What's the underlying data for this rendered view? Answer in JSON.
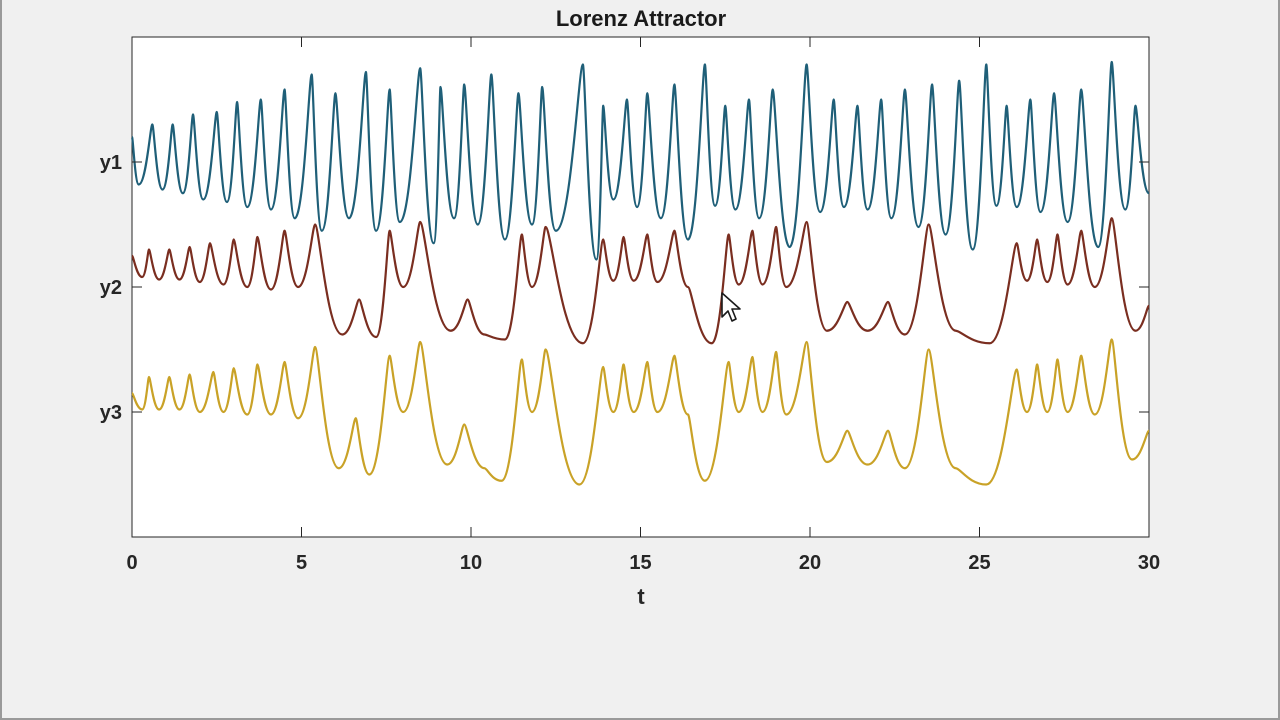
{
  "chart_data": {
    "type": "line",
    "title": "Lorenz Attractor",
    "xlabel": "t",
    "ylabel": "",
    "xlim": [
      0,
      30
    ],
    "x_ticks": [
      "0",
      "5",
      "10",
      "15",
      "20",
      "25",
      "30"
    ],
    "y_ticks": [
      "y1",
      "y2",
      "y3"
    ],
    "grid": false,
    "legend": "none",
    "series": [
      {
        "name": "y1",
        "color": "#1f5f78",
        "offset": 3,
        "peaks": [
          [
            0.0,
            0.2
          ],
          [
            0.6,
            0.3
          ],
          [
            1.2,
            0.3
          ],
          [
            1.8,
            0.38
          ],
          [
            2.5,
            0.4
          ],
          [
            3.1,
            0.48
          ],
          [
            3.8,
            0.5
          ],
          [
            4.5,
            0.58
          ],
          [
            5.3,
            0.7
          ],
          [
            6.0,
            0.55
          ],
          [
            6.9,
            0.72
          ],
          [
            7.6,
            0.58
          ],
          [
            8.5,
            0.75
          ],
          [
            9.1,
            0.6
          ],
          [
            9.8,
            0.62
          ],
          [
            10.6,
            0.7
          ],
          [
            11.4,
            0.55
          ],
          [
            12.1,
            0.6
          ],
          [
            13.3,
            0.78
          ],
          [
            13.9,
            0.45
          ],
          [
            14.6,
            0.5
          ],
          [
            15.2,
            0.55
          ],
          [
            16.0,
            0.62
          ],
          [
            16.9,
            0.78
          ],
          [
            17.5,
            0.45
          ],
          [
            18.2,
            0.5
          ],
          [
            18.9,
            0.58
          ],
          [
            19.9,
            0.78
          ],
          [
            20.7,
            0.5
          ],
          [
            21.4,
            0.45
          ],
          [
            22.1,
            0.5
          ],
          [
            22.8,
            0.58
          ],
          [
            23.6,
            0.62
          ],
          [
            24.4,
            0.65
          ],
          [
            25.2,
            0.78
          ],
          [
            25.8,
            0.45
          ],
          [
            26.5,
            0.5
          ],
          [
            27.2,
            0.55
          ],
          [
            28.0,
            0.58
          ],
          [
            28.9,
            0.8
          ],
          [
            29.6,
            0.45
          ]
        ],
        "troughs": [
          [
            0.2,
            -0.18
          ],
          [
            0.9,
            -0.22
          ],
          [
            1.5,
            -0.25
          ],
          [
            2.1,
            -0.3
          ],
          [
            2.8,
            -0.32
          ],
          [
            3.4,
            -0.36
          ],
          [
            4.1,
            -0.38
          ],
          [
            4.8,
            -0.45
          ],
          [
            5.6,
            -0.55
          ],
          [
            6.4,
            -0.45
          ],
          [
            7.2,
            -0.55
          ],
          [
            7.9,
            -0.48
          ],
          [
            8.9,
            -0.65
          ],
          [
            9.5,
            -0.45
          ],
          [
            10.2,
            -0.5
          ],
          [
            11.0,
            -0.62
          ],
          [
            11.8,
            -0.5
          ],
          [
            12.5,
            -0.55
          ],
          [
            13.7,
            -0.78
          ],
          [
            14.2,
            -0.3
          ],
          [
            14.9,
            -0.36
          ],
          [
            15.6,
            -0.45
          ],
          [
            16.4,
            -0.62
          ],
          [
            17.2,
            -0.35
          ],
          [
            17.8,
            -0.38
          ],
          [
            18.5,
            -0.45
          ],
          [
            19.4,
            -0.68
          ],
          [
            20.3,
            -0.4
          ],
          [
            21.0,
            -0.36
          ],
          [
            21.7,
            -0.38
          ],
          [
            22.4,
            -0.45
          ],
          [
            23.2,
            -0.52
          ],
          [
            24.0,
            -0.58
          ],
          [
            24.8,
            -0.7
          ],
          [
            25.5,
            -0.35
          ],
          [
            26.1,
            -0.36
          ],
          [
            26.8,
            -0.4
          ],
          [
            27.6,
            -0.48
          ],
          [
            28.5,
            -0.68
          ],
          [
            29.3,
            -0.38
          ],
          [
            30.0,
            -0.25
          ]
        ]
      },
      {
        "name": "y2",
        "color": "#7a2e20",
        "offset": 2,
        "peaks": [
          [
            0.0,
            0.25
          ],
          [
            0.5,
            0.3
          ],
          [
            1.1,
            0.3
          ],
          [
            1.7,
            0.32
          ],
          [
            2.3,
            0.35
          ],
          [
            3.0,
            0.38
          ],
          [
            3.7,
            0.4
          ],
          [
            4.5,
            0.45
          ],
          [
            5.4,
            0.5
          ],
          [
            7.6,
            0.45
          ],
          [
            8.5,
            0.52
          ],
          [
            11.5,
            0.42
          ],
          [
            12.2,
            0.48
          ],
          [
            13.9,
            0.38
          ],
          [
            14.5,
            0.4
          ],
          [
            15.2,
            0.42
          ],
          [
            16.0,
            0.45
          ],
          [
            17.6,
            0.42
          ],
          [
            18.3,
            0.45
          ],
          [
            19.0,
            0.48
          ],
          [
            19.9,
            0.52
          ],
          [
            23.5,
            0.5
          ],
          [
            26.1,
            0.35
          ],
          [
            26.7,
            0.38
          ],
          [
            27.3,
            0.42
          ],
          [
            28.0,
            0.45
          ],
          [
            28.9,
            0.55
          ]
        ],
        "troughs": [
          [
            0.3,
            0.08
          ],
          [
            0.8,
            0.06
          ],
          [
            1.4,
            0.06
          ],
          [
            2.0,
            0.04
          ],
          [
            2.7,
            0.02
          ],
          [
            3.4,
            0.0
          ],
          [
            4.1,
            -0.02
          ],
          [
            4.9,
            0.0
          ],
          [
            6.2,
            -0.38
          ],
          [
            6.7,
            -0.1
          ],
          [
            7.2,
            -0.4
          ],
          [
            8.0,
            0.0
          ],
          [
            9.4,
            -0.35
          ],
          [
            9.9,
            -0.1
          ],
          [
            10.4,
            -0.38
          ],
          [
            11.0,
            -0.42
          ],
          [
            11.8,
            0.0
          ],
          [
            13.3,
            -0.45
          ],
          [
            14.2,
            0.05
          ],
          [
            14.8,
            0.05
          ],
          [
            15.5,
            0.04
          ],
          [
            16.4,
            0.0
          ],
          [
            17.1,
            -0.45
          ],
          [
            17.9,
            0.02
          ],
          [
            18.6,
            0.02
          ],
          [
            19.3,
            0.0
          ],
          [
            20.5,
            -0.35
          ],
          [
            21.1,
            -0.12
          ],
          [
            21.7,
            -0.35
          ],
          [
            22.3,
            -0.12
          ],
          [
            22.8,
            -0.38
          ],
          [
            24.3,
            -0.35
          ],
          [
            25.3,
            -0.45
          ],
          [
            26.4,
            0.05
          ],
          [
            27.0,
            0.04
          ],
          [
            27.6,
            0.02
          ],
          [
            28.4,
            0.0
          ],
          [
            29.6,
            -0.35
          ],
          [
            30.0,
            -0.15
          ]
        ]
      },
      {
        "name": "y3",
        "color": "#c9a227",
        "offset": 1,
        "peaks": [
          [
            0.0,
            0.15
          ],
          [
            0.5,
            0.28
          ],
          [
            1.1,
            0.28
          ],
          [
            1.7,
            0.3
          ],
          [
            2.4,
            0.32
          ],
          [
            3.0,
            0.35
          ],
          [
            3.7,
            0.38
          ],
          [
            4.5,
            0.4
          ],
          [
            5.4,
            0.52
          ],
          [
            7.6,
            0.45
          ],
          [
            8.5,
            0.56
          ],
          [
            11.5,
            0.42
          ],
          [
            12.2,
            0.5
          ],
          [
            13.9,
            0.36
          ],
          [
            14.5,
            0.38
          ],
          [
            15.2,
            0.4
          ],
          [
            16.0,
            0.45
          ],
          [
            17.6,
            0.4
          ],
          [
            18.3,
            0.44
          ],
          [
            19.0,
            0.48
          ],
          [
            19.9,
            0.56
          ],
          [
            23.5,
            0.5
          ],
          [
            26.1,
            0.34
          ],
          [
            26.7,
            0.38
          ],
          [
            27.3,
            0.42
          ],
          [
            28.0,
            0.45
          ],
          [
            28.9,
            0.58
          ]
        ],
        "troughs": [
          [
            0.3,
            0.02
          ],
          [
            0.8,
            0.02
          ],
          [
            1.4,
            0.02
          ],
          [
            2.0,
            0.0
          ],
          [
            2.7,
            0.0
          ],
          [
            3.4,
            -0.02
          ],
          [
            4.1,
            -0.02
          ],
          [
            4.9,
            -0.05
          ],
          [
            6.1,
            -0.45
          ],
          [
            6.6,
            -0.05
          ],
          [
            7.0,
            -0.5
          ],
          [
            8.0,
            0.0
          ],
          [
            9.3,
            -0.42
          ],
          [
            9.8,
            -0.1
          ],
          [
            10.4,
            -0.45
          ],
          [
            10.9,
            -0.55
          ],
          [
            11.8,
            0.0
          ],
          [
            13.2,
            -0.58
          ],
          [
            14.2,
            0.0
          ],
          [
            14.8,
            0.0
          ],
          [
            15.5,
            0.0
          ],
          [
            16.4,
            -0.02
          ],
          [
            16.9,
            -0.55
          ],
          [
            17.9,
            0.0
          ],
          [
            18.6,
            0.0
          ],
          [
            19.3,
            -0.02
          ],
          [
            20.5,
            -0.4
          ],
          [
            21.1,
            -0.15
          ],
          [
            21.7,
            -0.42
          ],
          [
            22.3,
            -0.15
          ],
          [
            22.8,
            -0.45
          ],
          [
            24.3,
            -0.45
          ],
          [
            25.2,
            -0.58
          ],
          [
            26.4,
            0.0
          ],
          [
            27.0,
            0.0
          ],
          [
            27.6,
            0.0
          ],
          [
            28.4,
            -0.02
          ],
          [
            29.5,
            -0.38
          ],
          [
            30.0,
            -0.15
          ]
        ]
      }
    ]
  }
}
